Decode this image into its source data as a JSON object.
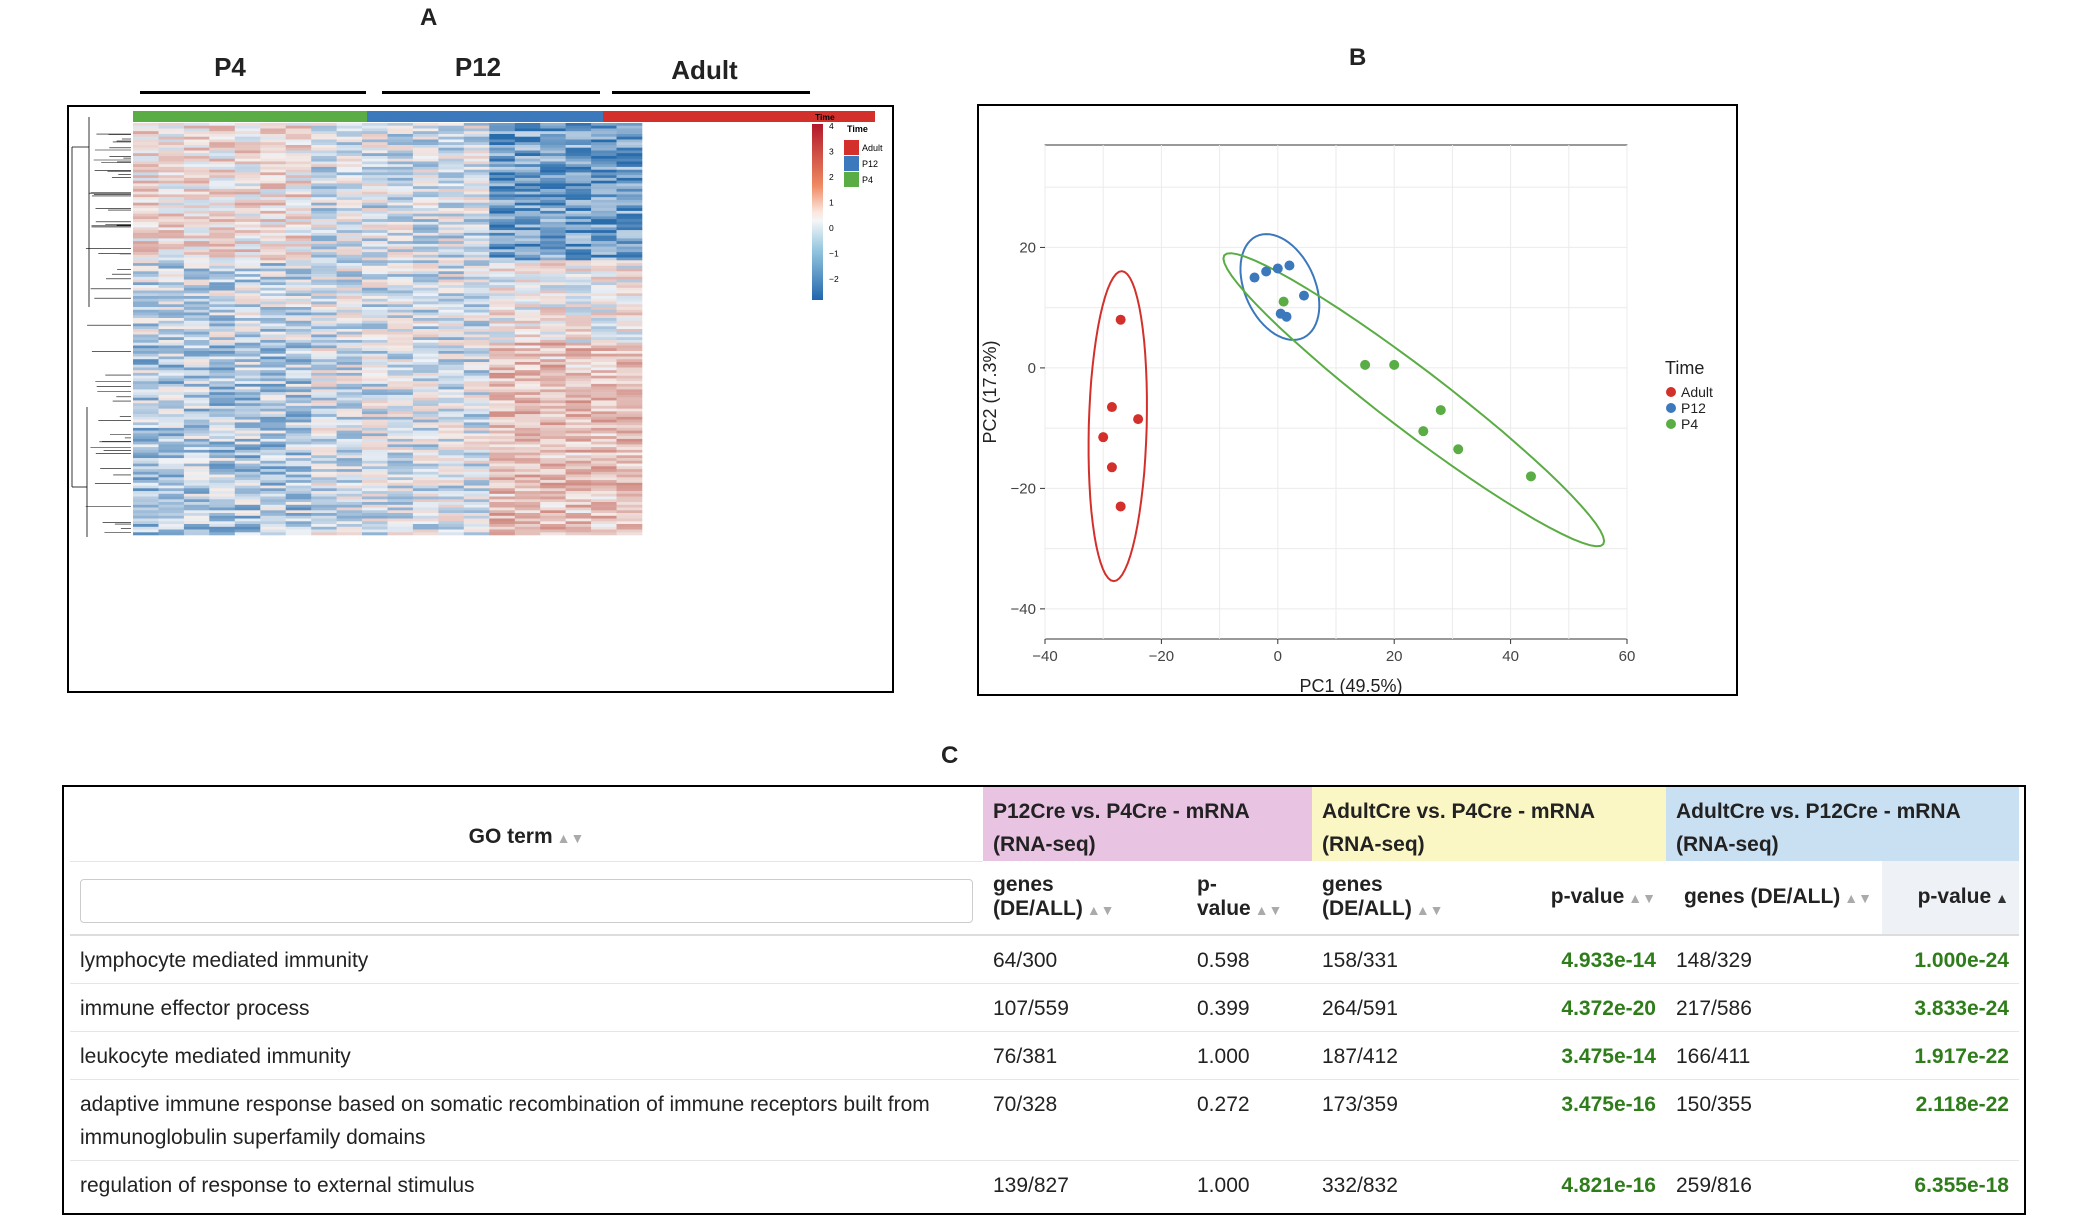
{
  "panels": {
    "a": "A",
    "b": "B",
    "c": "C"
  },
  "heatmap": {
    "groups": [
      "P4",
      "P12",
      "Adult"
    ],
    "legend_title_small": "Time",
    "legend_title": "Time",
    "legend_items": [
      "Adult",
      "P12",
      "P4"
    ],
    "legend_colors": [
      "#d3302b",
      "#3c78bc",
      "#5aac44"
    ],
    "scale_ticks": [
      "4",
      "3",
      "2",
      "1",
      "0",
      "−1",
      "−2"
    ]
  },
  "chart_data": {
    "type": "scatter",
    "xlabel": "PC1 (49.5%)",
    "ylabel": "PC2 (17.3%)",
    "xlim": [
      -40,
      60
    ],
    "ylim": [
      -45,
      37
    ],
    "xticks": [
      "−40",
      "−20",
      "0",
      "20",
      "40",
      "60"
    ],
    "yticks": [
      "20",
      "0",
      "−20",
      "−40"
    ],
    "grid": true,
    "legend_title": "Time",
    "legend_position": "right",
    "series": [
      {
        "name": "Adult",
        "color": "#d3302b",
        "x": [
          -27,
          -28.5,
          -24,
          -30,
          -28.5,
          -27
        ],
        "y": [
          8,
          -6.5,
          -8.5,
          -11.5,
          -16.5,
          -23
        ]
      },
      {
        "name": "P12",
        "color": "#3c78bc",
        "x": [
          -4,
          -2,
          0,
          2,
          4.5,
          0.5,
          1.5
        ],
        "y": [
          15,
          16,
          16.5,
          17,
          12,
          9,
          8.5
        ]
      },
      {
        "name": "P4",
        "color": "#5aac44",
        "x": [
          1,
          15,
          20,
          28,
          25,
          31,
          43.5
        ],
        "y": [
          11,
          0.5,
          0.5,
          -7,
          -10.5,
          -13.5,
          -18
        ]
      }
    ]
  },
  "table": {
    "go_header": "GO term",
    "groups": [
      {
        "label": "P12Cre vs. P4Cre - mRNA (RNA-seq)",
        "color": "#e8c3e2"
      },
      {
        "label": "AdultCre vs. P4Cre - mRNA (RNA-seq)",
        "color": "#fbf7c4"
      },
      {
        "label": "AdultCre vs. P12Cre - mRNA (RNA-seq)",
        "color": "#c9e0f3"
      }
    ],
    "sub_headers": [
      "genes (DE/ALL)",
      "p-value",
      "genes (DE/ALL)",
      "p-value",
      "genes (DE/ALL)",
      "p-value"
    ],
    "rows": [
      {
        "term": "lymphocyte mediated immunity",
        "c1": "64/300",
        "p1": "0.598",
        "c2": "158/331",
        "p2": "4.933e-14",
        "c3": "148/329",
        "p3": "1.000e-24"
      },
      {
        "term": "immune effector process",
        "c1": "107/559",
        "p1": "0.399",
        "c2": "264/591",
        "p2": "4.372e-20",
        "c3": "217/586",
        "p3": "3.833e-24"
      },
      {
        "term": "leukocyte mediated immunity",
        "c1": "76/381",
        "p1": "1.000",
        "c2": "187/412",
        "p2": "3.475e-14",
        "c3": "166/411",
        "p3": "1.917e-22"
      },
      {
        "term": "adaptive immune response based on somatic recombination of immune receptors built from immunoglobulin superfamily domains",
        "c1": "70/328",
        "p1": "0.272",
        "c2": "173/359",
        "p2": "3.475e-16",
        "c3": "150/355",
        "p3": "2.118e-22"
      },
      {
        "term": "regulation of response to external stimulus",
        "c1": "139/827",
        "p1": "1.000",
        "c2": "332/832",
        "p2": "4.821e-16",
        "c3": "259/816",
        "p3": "6.355e-18"
      }
    ]
  }
}
